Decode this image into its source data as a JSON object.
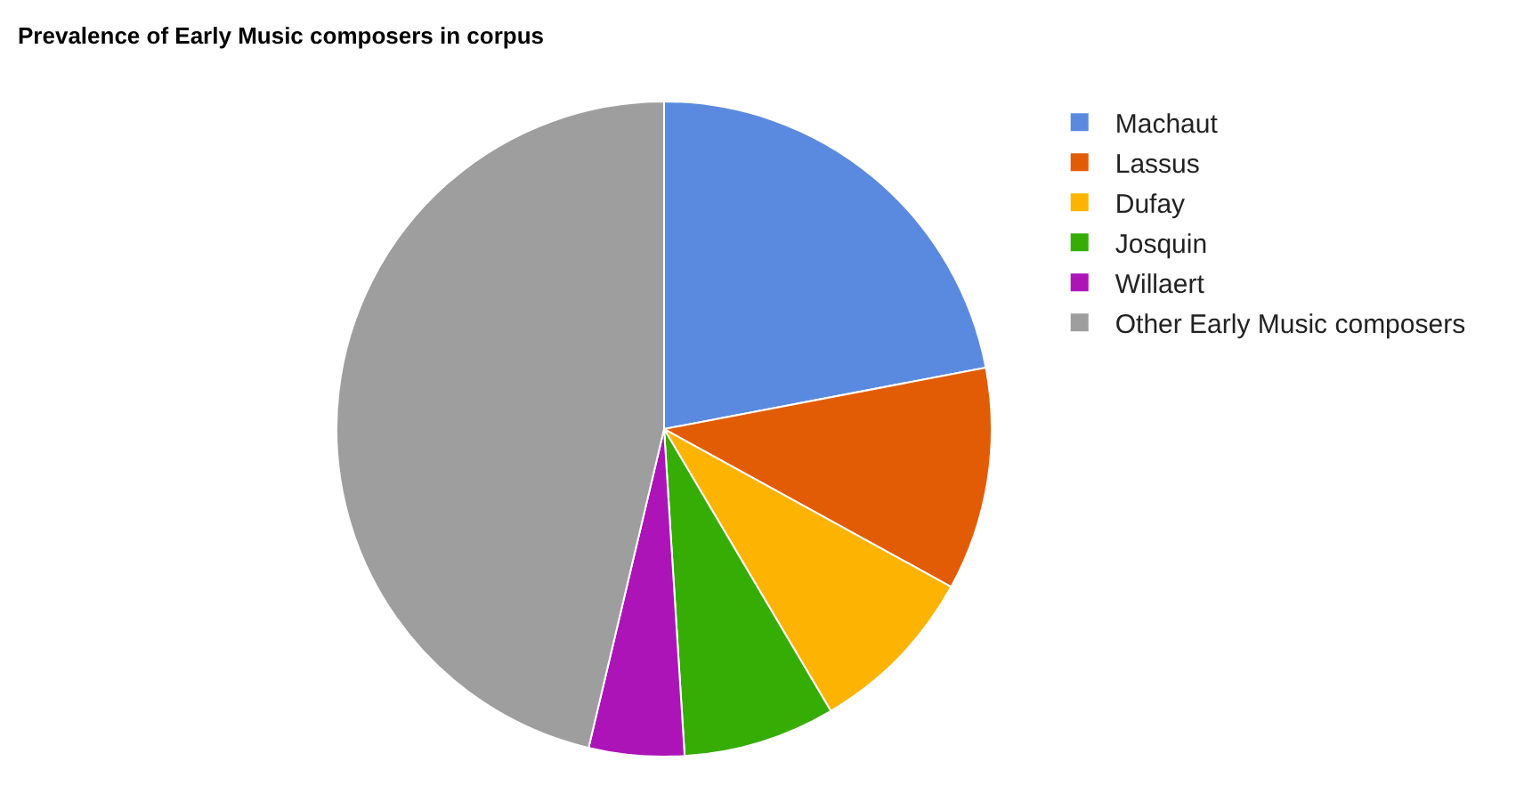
{
  "chart_data": {
    "type": "pie",
    "title": "Prevalence of Early Music composers in corpus",
    "categories": [
      "Machaut",
      "Lassus",
      "Dufay",
      "Josquin",
      "Willaert",
      "Other Early Music composers"
    ],
    "values": [
      22,
      11,
      8.5,
      7.5,
      4.7,
      46.3
    ],
    "colors": [
      "#5a8ae0",
      "#e25c05",
      "#fdb302",
      "#35ad05",
      "#ad14b8",
      "#9e9e9e"
    ],
    "legend": "right"
  }
}
